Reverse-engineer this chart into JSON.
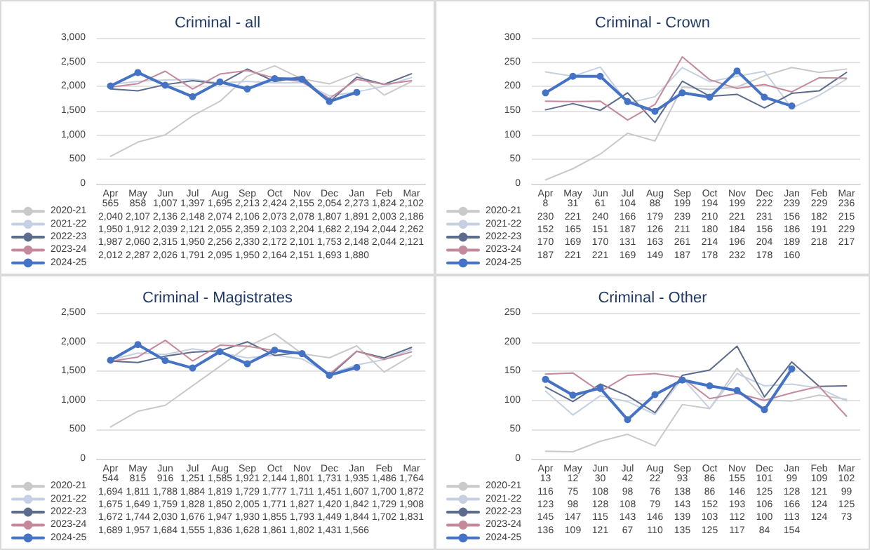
{
  "chart_data": [
    {
      "type": "line",
      "title": "Criminal - all",
      "categories": [
        "Apr",
        "May",
        "Jun",
        "Jul",
        "Aug",
        "Sep",
        "Oct",
        "Nov",
        "Dec",
        "Jan",
        "Feb",
        "Mar"
      ],
      "ylim": [
        0,
        3000
      ],
      "yticks": [
        0,
        500,
        {
          "value": 1000,
          "label": "1,000"
        },
        {
          "value": 1500,
          "label": "1,500"
        },
        {
          "value": 2000,
          "label": "2,000"
        },
        {
          "value": 2500,
          "label": "2,500"
        },
        {
          "value": 3000,
          "label": "3,000"
        }
      ],
      "grid": "y",
      "legend": "bottom left",
      "series": [
        {
          "name": "2020-21",
          "color": "#c9c9c9",
          "marker": "none",
          "values": [
            565,
            858,
            1007,
            1397,
            1695,
            2213,
            2424,
            2155,
            2054,
            2273,
            1824,
            2102
          ],
          "value_labels": [
            "565",
            "858",
            "1,007",
            "1,397",
            "1,695",
            "2,213",
            "2,424",
            "2,155",
            "2,054",
            "2,273",
            "1,824",
            "2,102"
          ]
        },
        {
          "name": "2021-22",
          "color": "#c5d0e3",
          "marker": "none",
          "values": [
            2040,
            2107,
            2136,
            2148,
            2074,
            2106,
            2073,
            2078,
            1807,
            1891,
            2003,
            2186
          ],
          "value_labels": [
            "2,040",
            "2,107",
            "2,136",
            "2,148",
            "2,074",
            "2,106",
            "2,073",
            "2,078",
            "1,807",
            "1,891",
            "2,003",
            "2,186"
          ]
        },
        {
          "name": "2022-23",
          "color": "#5b6b8c",
          "marker": "none",
          "values": [
            1950,
            1912,
            2039,
            2121,
            2055,
            2359,
            2103,
            2204,
            1682,
            2194,
            2044,
            2262
          ],
          "value_labels": [
            "1,950",
            "1,912",
            "2,039",
            "2,121",
            "2,055",
            "2,359",
            "2,103",
            "2,204",
            "1,682",
            "2,194",
            "2,044",
            "2,262"
          ]
        },
        {
          "name": "2023-24",
          "color": "#c4899a",
          "marker": "none",
          "values": [
            1987,
            2060,
            2315,
            1950,
            2256,
            2330,
            2172,
            2101,
            1753,
            2148,
            2044,
            2121
          ],
          "value_labels": [
            "1,987",
            "2,060",
            "2,315",
            "1,950",
            "2,256",
            "2,330",
            "2,172",
            "2,101",
            "1,753",
            "2,148",
            "2,044",
            "2,121"
          ]
        },
        {
          "name": "2024-25",
          "color": "#4472c4",
          "marker": "circle",
          "values": [
            2012,
            2287,
            2026,
            1791,
            2095,
            1950,
            2164,
            2151,
            1693,
            1880,
            null,
            null
          ],
          "value_labels": [
            "2,012",
            "2,287",
            "2,026",
            "1,791",
            "2,095",
            "1,950",
            "2,164",
            "2,151",
            "1,693",
            "1,880",
            null,
            null
          ]
        }
      ]
    },
    {
      "type": "line",
      "title": "Criminal - Crown",
      "categories": [
        "Apr",
        "May",
        "Jun",
        "Jul",
        "Aug",
        "Sep",
        "Oct",
        "Nov",
        "Dec",
        "Jan",
        "Feb",
        "Mar"
      ],
      "ylim": [
        0,
        300
      ],
      "yticks": [
        0,
        50,
        100,
        150,
        200,
        250,
        300
      ],
      "grid": "y",
      "legend": "bottom left",
      "data_labels": true,
      "series": [
        {
          "name": "2020-21",
          "color": "#c9c9c9",
          "marker": "none",
          "values": [
            8,
            31,
            61,
            104,
            88,
            199,
            194,
            199,
            222,
            239,
            229,
            236
          ]
        },
        {
          "name": "2021-22",
          "color": "#c5d0e3",
          "marker": "none",
          "values": [
            230,
            221,
            240,
            166,
            179,
            239,
            210,
            221,
            231,
            156,
            182,
            215
          ]
        },
        {
          "name": "2022-23",
          "color": "#5b6b8c",
          "marker": "none",
          "values": [
            152,
            165,
            151,
            187,
            126,
            211,
            180,
            184,
            156,
            186,
            191,
            229
          ]
        },
        {
          "name": "2023-24",
          "color": "#c4899a",
          "marker": "none",
          "values": [
            170,
            169,
            170,
            131,
            163,
            261,
            214,
            196,
            204,
            189,
            218,
            217
          ]
        },
        {
          "name": "2024-25",
          "color": "#4472c4",
          "marker": "circle",
          "values": [
            187,
            221,
            221,
            169,
            149,
            187,
            178,
            232,
            178,
            160,
            null,
            null
          ]
        }
      ]
    },
    {
      "type": "line",
      "title": "Criminal - Magistrates",
      "categories": [
        "Apr",
        "May",
        "Jun",
        "Jul",
        "Aug",
        "Sep",
        "Oct",
        "Nov",
        "Dec",
        "Jan",
        "Feb",
        "Mar"
      ],
      "ylim": [
        0,
        2500
      ],
      "yticks": [
        0,
        500,
        {
          "value": 1000,
          "label": "1,000"
        },
        {
          "value": 1500,
          "label": "1,500"
        },
        {
          "value": 2000,
          "label": "2,000"
        },
        {
          "value": 2500,
          "label": "2,500"
        }
      ],
      "grid": "y",
      "legend": "bottom left",
      "series": [
        {
          "name": "2020-21",
          "color": "#c9c9c9",
          "marker": "none",
          "values": [
            544,
            815,
            916,
            1251,
            1585,
            1921,
            2144,
            1801,
            1731,
            1935,
            1486,
            1764
          ],
          "value_labels": [
            "544",
            "815",
            "916",
            "1,251",
            "1,585",
            "1,921",
            "2,144",
            "1,801",
            "1,731",
            "1,935",
            "1,486",
            "1,764"
          ]
        },
        {
          "name": "2021-22",
          "color": "#c5d0e3",
          "marker": "none",
          "values": [
            1694,
            1811,
            1788,
            1884,
            1819,
            1729,
            1777,
            1711,
            1451,
            1607,
            1700,
            1872
          ],
          "value_labels": [
            "1,694",
            "1,811",
            "1,788",
            "1,884",
            "1,819",
            "1,729",
            "1,777",
            "1,711",
            "1,451",
            "1,607",
            "1,700",
            "1,872"
          ]
        },
        {
          "name": "2022-23",
          "color": "#5b6b8c",
          "marker": "none",
          "values": [
            1675,
            1649,
            1759,
            1828,
            1850,
            2005,
            1771,
            1827,
            1420,
            1842,
            1729,
            1908
          ],
          "value_labels": [
            "1,675",
            "1,649",
            "1,759",
            "1,828",
            "1,850",
            "2,005",
            "1,771",
            "1,827",
            "1,420",
            "1,842",
            "1,729",
            "1,908"
          ]
        },
        {
          "name": "2023-24",
          "color": "#c4899a",
          "marker": "none",
          "values": [
            1672,
            1744,
            2030,
            1676,
            1947,
            1930,
            1855,
            1793,
            1449,
            1844,
            1702,
            1831
          ],
          "value_labels": [
            "1,672",
            "1,744",
            "2,030",
            "1,676",
            "1,947",
            "1,930",
            "1,855",
            "1,793",
            "1,449",
            "1,844",
            "1,702",
            "1,831"
          ]
        },
        {
          "name": "2024-25",
          "color": "#4472c4",
          "marker": "circle",
          "values": [
            1689,
            1957,
            1684,
            1555,
            1836,
            1628,
            1861,
            1802,
            1431,
            1566,
            null,
            null
          ],
          "value_labels": [
            "1,689",
            "1,957",
            "1,684",
            "1,555",
            "1,836",
            "1,628",
            "1,861",
            "1,802",
            "1,431",
            "1,566",
            null,
            null
          ]
        }
      ]
    },
    {
      "type": "line",
      "title": "Criminal - Other",
      "categories": [
        "Apr",
        "May",
        "Jun",
        "Jul",
        "Aug",
        "Sep",
        "Oct",
        "Nov",
        "Dec",
        "Jan",
        "Feb",
        "Mar"
      ],
      "ylim": [
        0,
        250
      ],
      "yticks": [
        0,
        50,
        100,
        150,
        200,
        250
      ],
      "grid": "y",
      "legend": "bottom left",
      "data_labels": true,
      "series": [
        {
          "name": "2020-21",
          "color": "#c9c9c9",
          "marker": "none",
          "values": [
            13,
            12,
            30,
            42,
            22,
            93,
            86,
            155,
            101,
            99,
            109,
            102
          ]
        },
        {
          "name": "2021-22",
          "color": "#c5d0e3",
          "marker": "none",
          "values": [
            116,
            75,
            108,
            98,
            76,
            138,
            86,
            146,
            125,
            128,
            121,
            99
          ]
        },
        {
          "name": "2022-23",
          "color": "#5b6b8c",
          "marker": "none",
          "values": [
            123,
            98,
            128,
            108,
            79,
            143,
            152,
            193,
            106,
            166,
            124,
            125
          ]
        },
        {
          "name": "2023-24",
          "color": "#c4899a",
          "marker": "none",
          "values": [
            145,
            147,
            115,
            143,
            146,
            139,
            103,
            112,
            100,
            113,
            124,
            73
          ]
        },
        {
          "name": "2024-25",
          "color": "#4472c4",
          "marker": "circle",
          "values": [
            136,
            109,
            121,
            67,
            110,
            135,
            125,
            117,
            84,
            154,
            null,
            null
          ]
        }
      ]
    }
  ]
}
